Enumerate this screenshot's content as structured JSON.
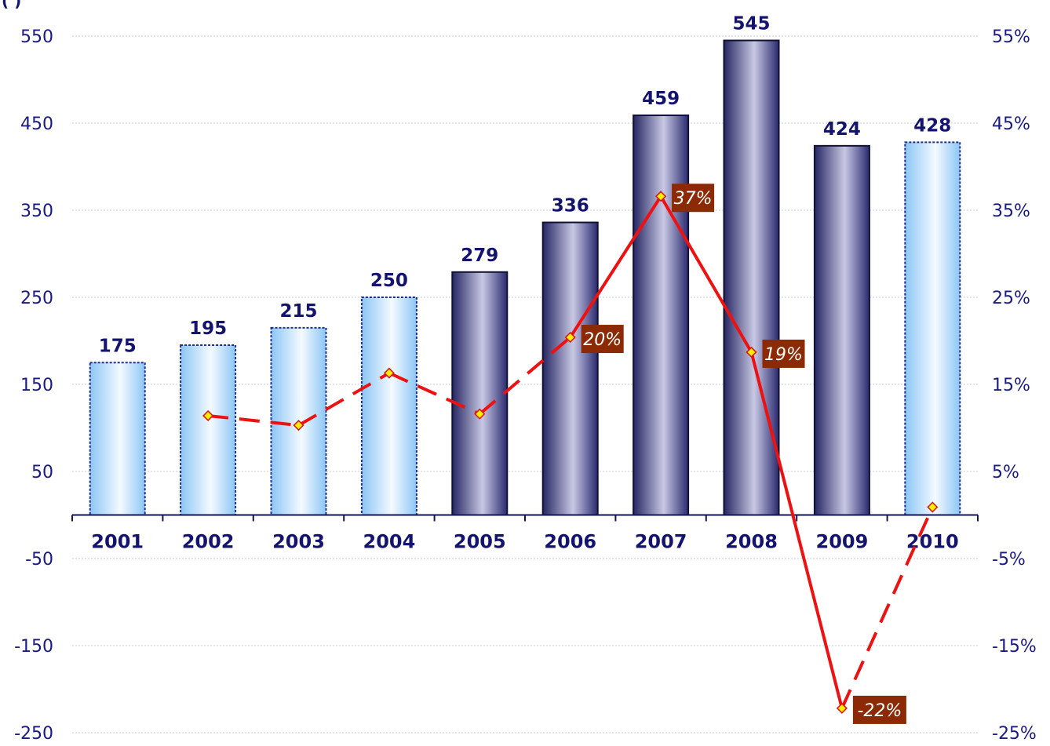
{
  "chart_data": {
    "type": "bar",
    "title_fragment": "(           )",
    "categories": [
      "2001",
      "2002",
      "2003",
      "2004",
      "2005",
      "2006",
      "2007",
      "2008",
      "2009",
      "2010"
    ],
    "values": [
      175,
      195,
      215,
      250,
      279,
      336,
      459,
      545,
      424,
      428
    ],
    "bar_styles": [
      "light",
      "light",
      "light",
      "light",
      "dark",
      "dark",
      "dark",
      "dark",
      "dark",
      "light"
    ],
    "growth": [
      null,
      11.4,
      10.3,
      16.3,
      11.6,
      20.4,
      36.6,
      18.7,
      -22.2,
      0.9
    ],
    "growth_labels": {
      "5": "20%",
      "6": "37%",
      "7": "19%",
      "8": "-22%"
    },
    "growth_segment_styles": [
      "dashed",
      "dashed",
      "dashed",
      "dashed",
      "solid",
      "solid",
      "solid",
      "dashed"
    ],
    "ylim_left": [
      -250,
      550
    ],
    "yticks_left": [
      "550",
      "450",
      "350",
      "250",
      "150",
      "50",
      "-50",
      "-150",
      "-250"
    ],
    "ylim_right": [
      -25,
      55
    ],
    "yticks_right": [
      "55%",
      "45%",
      "35%",
      "25%",
      "15%",
      "5%",
      "-5%",
      "-15%",
      "-25%"
    ],
    "grid": true,
    "colors": {
      "text": "#141470",
      "line": "#ee1111",
      "marker_fill": "#ffee00",
      "label_bg": "#8b2a05",
      "dark_bar": "#2a2a6e",
      "light_bar": "#9fd0f5"
    }
  }
}
